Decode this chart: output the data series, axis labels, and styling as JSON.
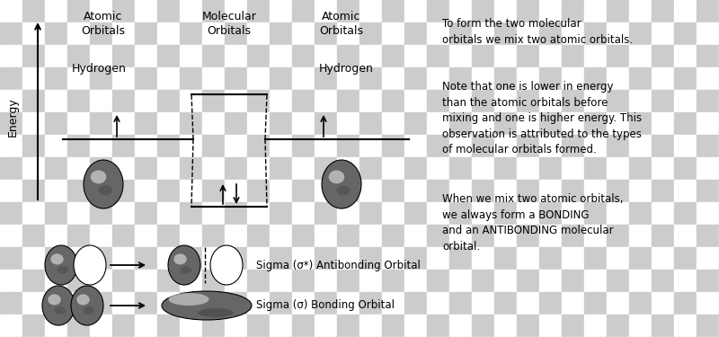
{
  "bg_checker_light": "#ffffff",
  "bg_checker_dark": "#cccccc",
  "checker_sq_pts": 25,
  "text_color": "#000000",
  "title_left": "Atomic\nOrbitals",
  "title_center": "Molecular\nOrbitals",
  "title_right": "Atomic\nOrbitals",
  "hydrogen_left": "Hydrogen",
  "hydrogen_right": "Hydrogen",
  "energy_label": "Energy",
  "right_text1": "To form the two molecular\norbitals we mix two atomic orbitals.",
  "right_text2": "Note that one is lower in energy\nthan the atomic orbitals before\nmixing and one is higher energy. This\nobservation is attributed to the types\nof molecular orbitals formed.",
  "right_text3": "When we mix two atomic orbitals,\nwe always form a BONDING\nand an ANTIBONDING molecular\norbital.",
  "sigma_antibonding_label": "Sigma (σ*) Antibonding Orbital",
  "sigma_bonding_label": "Sigma (σ) Bonding Orbital"
}
